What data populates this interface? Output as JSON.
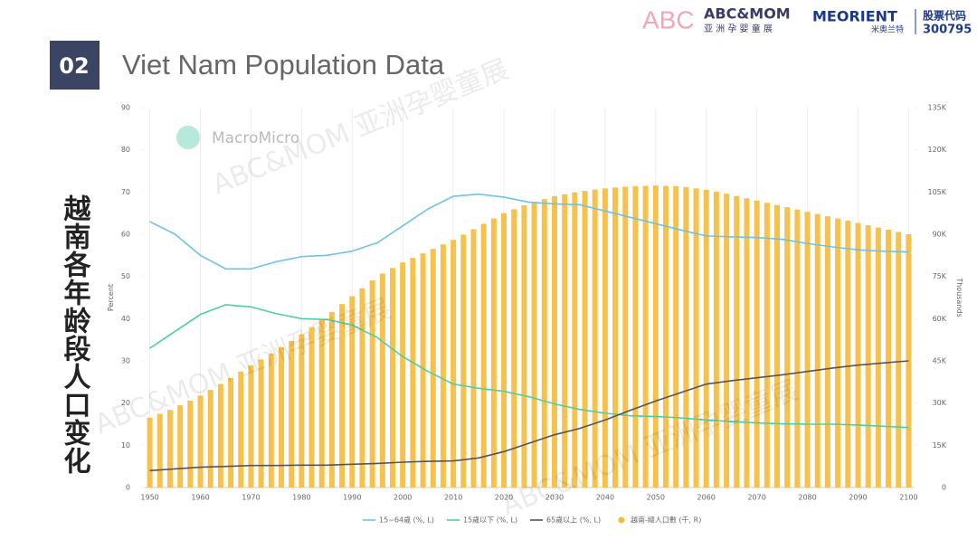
{
  "slide": {
    "number": "02",
    "title": "Viet Nam Population Data",
    "side_title": "越南各年龄段人口变化",
    "logo_abc": "ABC",
    "logo_mom": "ABC&MOM",
    "logo_mom_sub": "亚 洲 孕 婴 童 展",
    "logo_meorient": "MEORIENT",
    "logo_meorient_sub": "米奥兰特",
    "stock_label": "股票代码",
    "stock_code": "300795",
    "watermark": "ABC&MOM 亚洲孕婴童展",
    "source": "MacroMicro"
  },
  "chart_data": {
    "type": "combo",
    "ylabel": "Percent",
    "y2label": "Thousands",
    "xlim": [
      1949,
      2101
    ],
    "xticks": [
      1950,
      1960,
      1970,
      1980,
      1990,
      2000,
      2010,
      2020,
      2030,
      2040,
      2050,
      2060,
      2070,
      2080,
      2090,
      2100
    ],
    "ylim": [
      0,
      90
    ],
    "yticks": [
      0,
      10,
      20,
      30,
      40,
      50,
      60,
      70,
      80,
      90
    ],
    "y2lim": [
      0,
      135
    ],
    "y2ticks": [
      0,
      {
        "value": 15,
        "label": "15K"
      },
      {
        "value": 30,
        "label": "30K"
      },
      {
        "value": 45,
        "label": "45K"
      },
      {
        "value": 60,
        "label": "60K"
      },
      {
        "value": 75,
        "label": "75K"
      },
      {
        "value": 90,
        "label": "90K"
      },
      {
        "value": 105,
        "label": "105K"
      },
      {
        "value": 120,
        "label": "120K"
      },
      {
        "value": 135,
        "label": "135K"
      }
    ],
    "grid": true,
    "x": [
      1950,
      1955,
      1960,
      1965,
      1970,
      1975,
      1980,
      1985,
      1990,
      1995,
      2000,
      2005,
      2010,
      2015,
      2020,
      2025,
      2030,
      2035,
      2040,
      2045,
      2050,
      2055,
      2060,
      2065,
      2070,
      2075,
      2080,
      2085,
      2090,
      2095,
      2100
    ],
    "series": [
      {
        "name": "15~64歲 (%, L)",
        "type": "line",
        "color": "#6ec3e4",
        "values": [
          63,
          60,
          55,
          51.8,
          51.8,
          53.5,
          54.7,
          55,
          56,
          58,
          62,
          66,
          69,
          69.5,
          68.8,
          67.6,
          67.2,
          67,
          65.5,
          64,
          62.5,
          61,
          59.6,
          59.4,
          59.2,
          58.8,
          57.8,
          57,
          56.3,
          56,
          55.8
        ]
      },
      {
        "name": "15歲以下 (%, L)",
        "type": "line",
        "color": "#4dcfa6",
        "values": [
          33,
          37,
          41,
          43.3,
          42.8,
          41.2,
          40,
          39.8,
          38.5,
          35.5,
          31,
          27.5,
          24.5,
          23.5,
          22.8,
          21.5,
          19.8,
          18.5,
          17.6,
          17,
          16.8,
          16.5,
          16,
          15.6,
          15.3,
          15.1,
          15,
          15,
          14.8,
          14.5,
          14.2
        ]
      },
      {
        "name": "65歲以上 (%, L)",
        "type": "line",
        "color": "#555555",
        "values": [
          4,
          4.4,
          4.8,
          5,
          5.2,
          5.2,
          5.3,
          5.3,
          5.5,
          5.7,
          6,
          6.2,
          6.3,
          7,
          8.5,
          10.5,
          12.5,
          14,
          16,
          18.3,
          20.5,
          22.5,
          24.5,
          25.3,
          26,
          26.7,
          27.5,
          28.3,
          29,
          29.5,
          30
        ]
      },
      {
        "name": "越南-總人口數 (千, R)",
        "type": "bar",
        "axis": "y2",
        "color": "#f5bb3a",
        "x": [
          1950,
          1952,
          1954,
          1956,
          1958,
          1960,
          1962,
          1964,
          1966,
          1968,
          1970,
          1972,
          1974,
          1976,
          1978,
          1980,
          1982,
          1984,
          1986,
          1988,
          1990,
          1992,
          1994,
          1996,
          1998,
          2000,
          2002,
          2004,
          2006,
          2008,
          2010,
          2012,
          2014,
          2016,
          2018,
          2020,
          2022,
          2024,
          2026,
          2028,
          2030,
          2032,
          2034,
          2036,
          2038,
          2040,
          2042,
          2044,
          2046,
          2048,
          2050,
          2052,
          2054,
          2056,
          2058,
          2060,
          2062,
          2064,
          2066,
          2068,
          2070,
          2072,
          2074,
          2076,
          2078,
          2080,
          2082,
          2084,
          2086,
          2088,
          2090,
          2092,
          2094,
          2096,
          2098,
          2100
        ],
        "values": [
          24.8,
          26.2,
          27.6,
          29.2,
          30.9,
          32.7,
          34.7,
          36.8,
          38.9,
          41.2,
          43.4,
          45.5,
          47.6,
          49.8,
          52.1,
          54.4,
          57,
          59.7,
          62.4,
          65.2,
          68,
          70.8,
          73.6,
          76,
          78,
          80,
          81.6,
          83.2,
          84.8,
          86.4,
          88,
          89.9,
          91.8,
          93.7,
          95.6,
          97.5,
          98.9,
          100.3,
          101.5,
          102.5,
          103.5,
          104.2,
          104.9,
          105.4,
          105.9,
          106.3,
          106.6,
          106.9,
          107.1,
          107.2,
          107.3,
          107.2,
          107.1,
          106.8,
          106.3,
          105.8,
          105.1,
          104.4,
          103.6,
          102.8,
          102,
          101.2,
          100.4,
          99.6,
          98.8,
          98,
          97.2,
          96.4,
          95.6,
          94.8,
          94,
          93.2,
          92.4,
          91.6,
          90.8,
          90
        ]
      }
    ]
  }
}
